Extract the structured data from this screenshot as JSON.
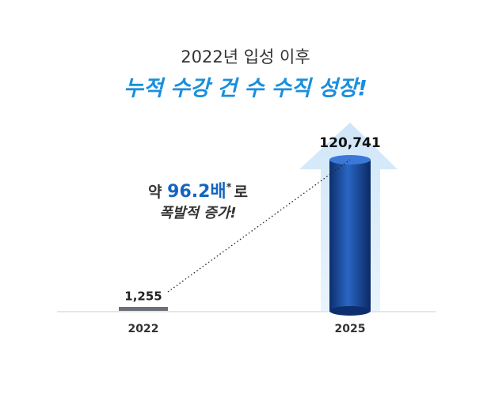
{
  "chart_data": {
    "type": "bar",
    "subtitle": "2022년 입성 이후",
    "title": "누적 수강 건 수 수직 성장!",
    "annotation": {
      "prefix": "약",
      "highlight": "96.2배",
      "mark": "*",
      "suffix": "로",
      "line2": "폭발적 증가!"
    },
    "categories": [
      "2022",
      "2025"
    ],
    "values": [
      1255,
      120741
    ],
    "value_labels": [
      "1,255",
      "120,741"
    ],
    "colors": [
      "#6b6f78",
      "#1c4fa0"
    ]
  }
}
